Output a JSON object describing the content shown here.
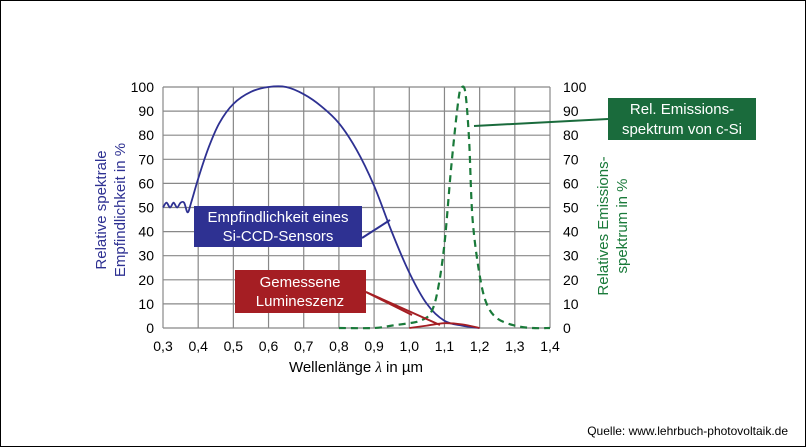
{
  "chart_data": {
    "type": "line",
    "xlabel_prefix": "Wellenlänge ",
    "xlabel_symbol": "λ",
    "xlabel_suffix": " in µm",
    "ylabel_left_line1": "Relative spektrale",
    "ylabel_left_line2": "Empfindlichkeit in %",
    "ylabel_right_line1": "Relatives Emissions-",
    "ylabel_right_line2": "spektrum in %",
    "x_ticks": [
      "0,3",
      "0,4",
      "0,5",
      "0,6",
      "0,7",
      "0,8",
      "0,9",
      "1,0",
      "1,1",
      "1,2",
      "1,3",
      "1,4"
    ],
    "y_ticks": [
      "0",
      "10",
      "20",
      "30",
      "40",
      "50",
      "60",
      "70",
      "80",
      "90",
      "100"
    ],
    "xlim": [
      0.3,
      1.4
    ],
    "ylim": [
      0,
      100
    ],
    "grid": true,
    "series": [
      {
        "key": "ccd",
        "color": "#2e3192",
        "style": "solid",
        "x": [
          0.3,
          0.31,
          0.32,
          0.33,
          0.34,
          0.35,
          0.36,
          0.37,
          0.38,
          0.4,
          0.43,
          0.46,
          0.5,
          0.55,
          0.6,
          0.65,
          0.7,
          0.75,
          0.8,
          0.85,
          0.9,
          0.95,
          1.0,
          1.05,
          1.1,
          1.15,
          1.2
        ],
        "y": [
          50,
          52,
          50,
          52,
          50,
          52,
          52,
          48,
          52,
          62,
          75,
          85,
          93,
          98,
          100,
          100,
          97,
          92,
          85,
          74,
          59,
          40,
          23,
          10,
          3,
          1,
          0
        ]
      },
      {
        "key": "emission",
        "color": "#1a7a3a",
        "style": "dashed",
        "x": [
          0.8,
          0.9,
          0.95,
          1.0,
          1.03,
          1.06,
          1.08,
          1.1,
          1.12,
          1.14,
          1.15,
          1.16,
          1.17,
          1.18,
          1.2,
          1.22,
          1.25,
          1.3,
          1.35,
          1.4
        ],
        "y": [
          0,
          0,
          1,
          2,
          3,
          6,
          15,
          35,
          68,
          95,
          100,
          97,
          78,
          45,
          22,
          10,
          4,
          1,
          0,
          0
        ]
      },
      {
        "key": "measured",
        "color": "#a51e23",
        "style": "solid",
        "x": [
          1.0,
          1.05,
          1.1,
          1.15,
          1.2
        ],
        "y": [
          0,
          1,
          2,
          1.5,
          0
        ]
      }
    ],
    "annotations": {
      "ccd_line1": "Empfindlichkeit eines",
      "ccd_line2": "Si-CCD-Sensors",
      "measured_line1": "Gemessene",
      "measured_line2": "Lumineszenz",
      "emission_line1": "Rel. Emissions-",
      "emission_line2": "spektrum von c-Si"
    },
    "colors": {
      "ccd_box": "#2e3192",
      "measured_box": "#a51e23",
      "emission_box": "#1a6b3c"
    }
  },
  "source": "Quelle: www.lehrbuch-photovoltaik.de"
}
